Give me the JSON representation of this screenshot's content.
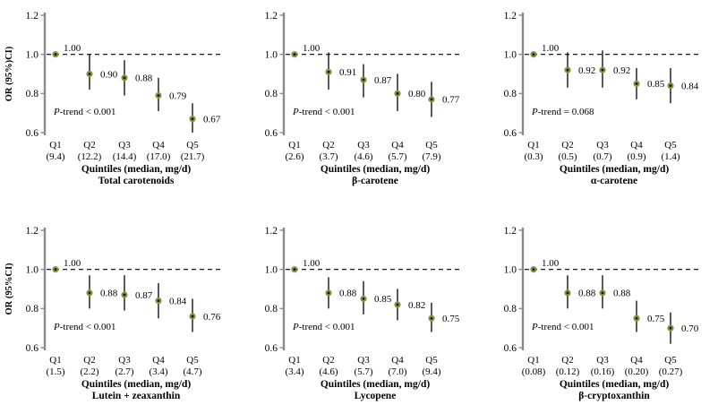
{
  "figure": {
    "background": "#ffffff",
    "marker_color": "#7a9a3c",
    "marker_center_color": "#151504",
    "errorbar_color": "#000000",
    "axis_color": "#8a8a8a",
    "reference_line_color": "#000000",
    "text_color": "#000000"
  },
  "chart_data": [
    {
      "type": "scatter",
      "title": "",
      "ylabel": "OR (95%)CI)",
      "xlabel_line1": "Quintiles (median, mg/d)",
      "xlabel_line2": "Total carotenoids",
      "p_trend": "P-trend < 0.001",
      "ylim": [
        0.6,
        1.2
      ],
      "yticks": [
        "1.2",
        "1.0",
        "0.8",
        "0.6"
      ],
      "ytick_values": [
        1.2,
        1.0,
        0.8,
        0.6
      ],
      "reference_line": 1.0,
      "grid": false,
      "categories": [
        "Q1",
        "Q2",
        "Q3",
        "Q4",
        "Q5"
      ],
      "medians": [
        "(9.4)",
        "(12.2)",
        "(14.4)",
        "(17.0)",
        "(21.7)"
      ],
      "or": [
        1.0,
        0.9,
        0.88,
        0.79,
        0.67
      ],
      "ci_low": [
        1.0,
        0.82,
        0.79,
        0.71,
        0.6
      ],
      "ci_high": [
        1.0,
        1.0,
        0.97,
        0.88,
        0.75
      ],
      "value_labels": [
        "1.00",
        "0.90",
        "0.88",
        "0.79",
        "0.67"
      ]
    },
    {
      "type": "scatter",
      "title": "",
      "ylabel": "",
      "xlabel_line1": "Quintiles (median, mg/d)",
      "xlabel_line2": "β-carotene",
      "p_trend": "P-trend < 0.001",
      "ylim": [
        0.6,
        1.2
      ],
      "yticks": [
        "1.2",
        "1.0",
        "0.8",
        "0.6"
      ],
      "ytick_values": [
        1.2,
        1.0,
        0.8,
        0.6
      ],
      "reference_line": 1.0,
      "grid": false,
      "categories": [
        "Q1",
        "Q2",
        "Q3",
        "Q4",
        "Q5"
      ],
      "medians": [
        "(2.6)",
        "(3.7)",
        "(4.6)",
        "(5.7)",
        "(7.9)"
      ],
      "or": [
        1.0,
        0.91,
        0.87,
        0.8,
        0.77
      ],
      "ci_low": [
        1.0,
        0.82,
        0.78,
        0.71,
        0.68
      ],
      "ci_high": [
        1.0,
        1.01,
        0.95,
        0.9,
        0.86
      ],
      "value_labels": [
        "1.00",
        "0.91",
        "0.87",
        "0.80",
        "0.77"
      ]
    },
    {
      "type": "scatter",
      "title": "",
      "ylabel": "",
      "xlabel_line1": "Quintiles (median, mg/d)",
      "xlabel_line2": "α-carotene",
      "p_trend": "P-trend = 0.068",
      "ylim": [
        0.6,
        1.2
      ],
      "yticks": [
        "1.2",
        "1.0",
        "0.8",
        "0.6"
      ],
      "ytick_values": [
        1.2,
        1.0,
        0.8,
        0.6
      ],
      "reference_line": 1.0,
      "grid": false,
      "categories": [
        "Q1",
        "Q2",
        "Q3",
        "Q4",
        "Q5"
      ],
      "medians": [
        "(0.3)",
        "(0.5)",
        "(0.7)",
        "(0.9)",
        "(1.4)"
      ],
      "or": [
        1.0,
        0.92,
        0.92,
        0.85,
        0.84
      ],
      "ci_low": [
        1.0,
        0.83,
        0.83,
        0.77,
        0.75
      ],
      "ci_high": [
        1.0,
        1.01,
        1.02,
        0.93,
        0.93
      ],
      "value_labels": [
        "1.00",
        "0.92",
        "0.92",
        "0.85",
        "0.84"
      ]
    },
    {
      "type": "scatter",
      "title": "",
      "ylabel": "OR (95%CI)",
      "xlabel_line1": "Quintiles (median, mg/d)",
      "xlabel_line2": "Lutein + zeaxanthin",
      "p_trend": "P-trend < 0.001",
      "ylim": [
        0.6,
        1.2
      ],
      "yticks": [
        "1.2",
        "1.0",
        "0.8",
        "0.6"
      ],
      "ytick_values": [
        1.2,
        1.0,
        0.8,
        0.6
      ],
      "reference_line": 1.0,
      "grid": false,
      "categories": [
        "Q1",
        "Q2",
        "Q3",
        "Q4",
        "Q5"
      ],
      "medians": [
        "(1.5)",
        "(2.2)",
        "(2.7)",
        "(3.4)",
        "(4.7)"
      ],
      "or": [
        1.0,
        0.88,
        0.87,
        0.84,
        0.76
      ],
      "ci_low": [
        1.0,
        0.8,
        0.79,
        0.75,
        0.68
      ],
      "ci_high": [
        1.0,
        0.97,
        0.97,
        0.93,
        0.85
      ],
      "value_labels": [
        "1.00",
        "0.88",
        "0.87",
        "0.84",
        "0.76"
      ]
    },
    {
      "type": "scatter",
      "title": "",
      "ylabel": "",
      "xlabel_line1": "Quintiles (median, mg/d)",
      "xlabel_line2": "Lycopene",
      "p_trend": "P-trend < 0.001",
      "ylim": [
        0.6,
        1.2
      ],
      "yticks": [
        "1.2",
        "1.0",
        "0.8",
        "0.6"
      ],
      "ytick_values": [
        1.2,
        1.0,
        0.8,
        0.6
      ],
      "reference_line": 1.0,
      "grid": false,
      "categories": [
        "Q1",
        "Q2",
        "Q3",
        "Q4",
        "Q5"
      ],
      "medians": [
        "(3.4)",
        "(4.6)",
        "(5.7)",
        "(7.0)",
        "(9.4)"
      ],
      "or": [
        1.0,
        0.88,
        0.85,
        0.82,
        0.75
      ],
      "ci_low": [
        1.0,
        0.8,
        0.77,
        0.74,
        0.68
      ],
      "ci_high": [
        1.0,
        0.96,
        0.94,
        0.9,
        0.83
      ],
      "value_labels": [
        "1.00",
        "0.88",
        "0.85",
        "0.82",
        "0.75"
      ]
    },
    {
      "type": "scatter",
      "title": "",
      "ylabel": "",
      "xlabel_line1": "Quintiles (median, mg/d)",
      "xlabel_line2": "β-cryptoxanthin",
      "p_trend": "P-trend < 0.001",
      "ylim": [
        0.6,
        1.2
      ],
      "yticks": [
        "1.2",
        "1.0",
        "0.8",
        "0.6"
      ],
      "ytick_values": [
        1.2,
        1.0,
        0.8,
        0.6
      ],
      "reference_line": 1.0,
      "grid": false,
      "categories": [
        "Q1",
        "Q2",
        "Q3",
        "Q4",
        "Q5"
      ],
      "medians": [
        "(0.08)",
        "(0.12)",
        "(0.16)",
        "(0.20)",
        "(0.27)"
      ],
      "or": [
        1.0,
        0.88,
        0.88,
        0.75,
        0.7
      ],
      "ci_low": [
        1.0,
        0.8,
        0.8,
        0.68,
        0.62
      ],
      "ci_high": [
        1.0,
        0.97,
        0.97,
        0.84,
        0.78
      ],
      "value_labels": [
        "1.00",
        "0.88",
        "0.88",
        "0.75",
        "0.70"
      ]
    }
  ]
}
